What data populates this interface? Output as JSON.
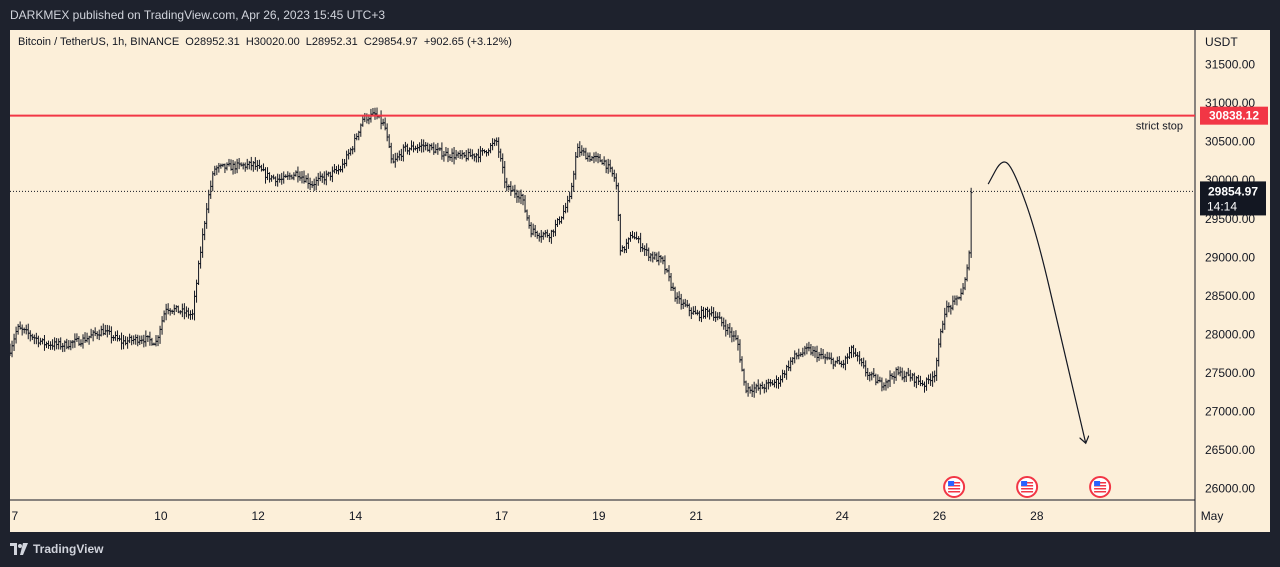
{
  "header": {
    "published": "DARKMEX published on TradingView.com, Apr 26, 2023 15:45 UTC+3"
  },
  "footer": {
    "brand": "TradingView"
  },
  "chart_data": {
    "type": "candlestick",
    "symbol_line": "Bitcoin / TetherUS, 1h, BINANCE  O28952.31  H30020.00  L28952.31  C29854.97  +902.65 (+3.12%)",
    "currency": "USDT",
    "y_ticks": [
      26000,
      26500,
      27000,
      27500,
      28000,
      28500,
      29000,
      29500,
      30000,
      30500,
      31000,
      31500
    ],
    "y_tick_labels": [
      "26000.00",
      "26500.00",
      "27000.00",
      "27500.00",
      "28000.00",
      "28500.00",
      "29000.00",
      "29500.00",
      "30000.00",
      "30500.00",
      "31000.00",
      "31500.00"
    ],
    "ylim": [
      25850,
      31950
    ],
    "x_ticks": [
      "7",
      "10",
      "12",
      "14",
      "17",
      "19",
      "21",
      "24",
      "26",
      "28",
      "May"
    ],
    "x_tick_days": [
      7,
      10,
      12,
      14,
      17,
      19,
      21,
      24,
      26,
      28,
      31.6
    ],
    "x_range_days": [
      6.9,
      31.25
    ],
    "last_time_day": 26.65,
    "horizontal_line": {
      "value": 30838.12,
      "label": "strict stop",
      "price_label": "30838.12",
      "color": "#f23645"
    },
    "last_price": {
      "value": 29854.97,
      "label": "29854.97",
      "countdown": "14:14"
    },
    "price_path": [
      [
        6.9,
        27800
      ],
      [
        7.05,
        28080
      ],
      [
        7.3,
        28000
      ],
      [
        7.6,
        27880
      ],
      [
        8.0,
        27860
      ],
      [
        8.4,
        27930
      ],
      [
        8.8,
        28050
      ],
      [
        9.2,
        27900
      ],
      [
        9.6,
        27950
      ],
      [
        9.9,
        27900
      ],
      [
        10.1,
        28350
      ],
      [
        10.4,
        28300
      ],
      [
        10.65,
        28250
      ],
      [
        10.8,
        29000
      ],
      [
        10.95,
        29700
      ],
      [
        11.1,
        30150
      ],
      [
        11.5,
        30180
      ],
      [
        11.9,
        30200
      ],
      [
        12.2,
        30050
      ],
      [
        12.5,
        30000
      ],
      [
        12.8,
        30100
      ],
      [
        13.1,
        29950
      ],
      [
        13.4,
        30050
      ],
      [
        13.7,
        30150
      ],
      [
        13.95,
        30450
      ],
      [
        14.15,
        30800
      ],
      [
        14.4,
        30850
      ],
      [
        14.6,
        30700
      ],
      [
        14.75,
        30200
      ],
      [
        15.0,
        30400
      ],
      [
        15.4,
        30450
      ],
      [
        15.8,
        30350
      ],
      [
        16.2,
        30300
      ],
      [
        16.6,
        30350
      ],
      [
        16.9,
        30500
      ],
      [
        17.1,
        29900
      ],
      [
        17.4,
        29800
      ],
      [
        17.6,
        29350
      ],
      [
        17.8,
        29300
      ],
      [
        18.0,
        29300
      ],
      [
        18.2,
        29500
      ],
      [
        18.4,
        29750
      ],
      [
        18.55,
        30400
      ],
      [
        18.8,
        30300
      ],
      [
        19.1,
        30250
      ],
      [
        19.35,
        30000
      ],
      [
        19.45,
        29050
      ],
      [
        19.7,
        29300
      ],
      [
        20.0,
        29050
      ],
      [
        20.3,
        28950
      ],
      [
        20.6,
        28450
      ],
      [
        21.0,
        28250
      ],
      [
        21.3,
        28300
      ],
      [
        21.6,
        28100
      ],
      [
        21.85,
        27900
      ],
      [
        22.0,
        27300
      ],
      [
        22.3,
        27300
      ],
      [
        22.7,
        27400
      ],
      [
        23.0,
        27700
      ],
      [
        23.3,
        27800
      ],
      [
        23.6,
        27700
      ],
      [
        24.0,
        27600
      ],
      [
        24.2,
        27800
      ],
      [
        24.5,
        27500
      ],
      [
        24.8,
        27350
      ],
      [
        25.1,
        27500
      ],
      [
        25.4,
        27450
      ],
      [
        25.7,
        27350
      ],
      [
        25.9,
        27500
      ],
      [
        26.1,
        28300
      ],
      [
        26.3,
        28400
      ],
      [
        26.5,
        28600
      ],
      [
        26.6,
        28950
      ],
      [
        26.65,
        29850
      ]
    ],
    "annotation_arrow_points": [
      [
        27.0,
        29950
      ],
      [
        27.3,
        30300
      ],
      [
        27.55,
        30100
      ],
      [
        28.0,
        29300
      ],
      [
        28.5,
        27950
      ],
      [
        29.0,
        26600
      ]
    ],
    "event_markers_days": [
      26.3,
      27.8,
      29.3
    ]
  }
}
